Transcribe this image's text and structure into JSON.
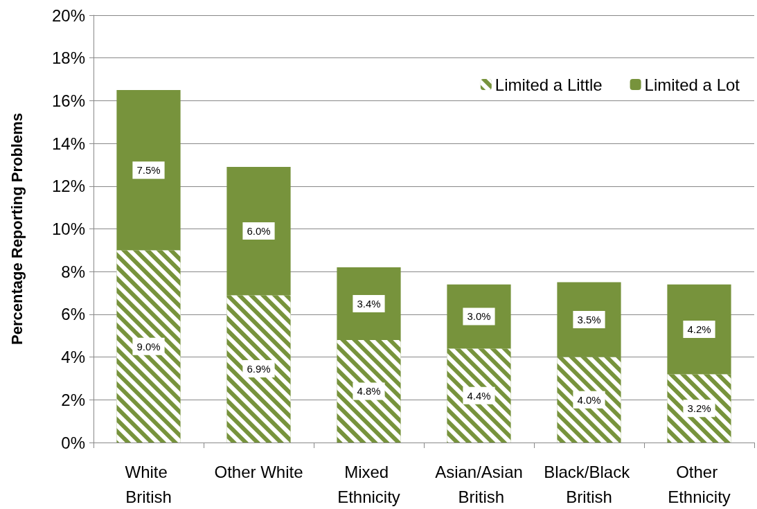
{
  "chart_data": {
    "type": "bar",
    "stacked": true,
    "ylabel": "Percentage Reporting Problems",
    "categories": [
      "White British",
      "Other White",
      "Mixed Ethnicity",
      "Asian/Asian British",
      "Black/Black British",
      "Other Ethnicity"
    ],
    "series": [
      {
        "name": "Limited a Little",
        "color": "#77933c",
        "values": [
          9.0,
          6.9,
          4.8,
          4.4,
          4.0,
          3.2
        ],
        "value_labels": [
          "9.0%",
          "6.9%",
          "4.8%",
          "4.4%",
          "4.0%",
          "3.2%"
        ]
      },
      {
        "name": "Limited a Lot",
        "color": "#77933c",
        "values": [
          7.5,
          6.0,
          3.4,
          3.0,
          3.5,
          4.2
        ],
        "value_labels": [
          "7.5%",
          "6.0%",
          "3.4%",
          "3.0%",
          "3.5%",
          "4.2%"
        ]
      }
    ],
    "ylim": [
      0,
      20
    ],
    "yticks": [
      {
        "value": 0,
        "label": "0%"
      },
      {
        "value": 2,
        "label": "2%"
      },
      {
        "value": 4,
        "label": "4%"
      },
      {
        "value": 6,
        "label": "6%"
      },
      {
        "value": 8,
        "label": "8%"
      },
      {
        "value": 10,
        "label": "10%"
      },
      {
        "value": 12,
        "label": "12%"
      },
      {
        "value": 14,
        "label": "14%"
      },
      {
        "value": 16,
        "label": "16%"
      },
      {
        "value": 18,
        "label": "18%"
      },
      {
        "value": 20,
        "label": "20%"
      }
    ],
    "grid": "y",
    "legend": "top right"
  }
}
